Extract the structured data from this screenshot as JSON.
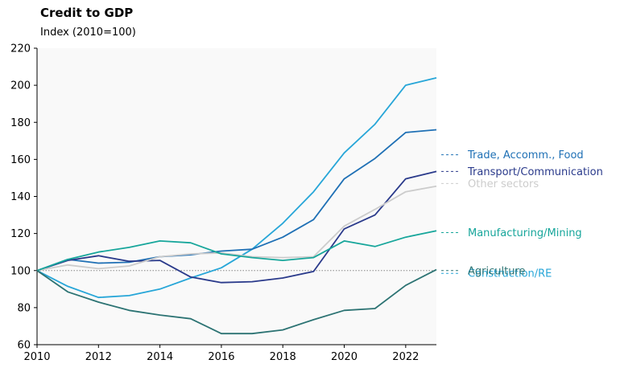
{
  "chart_data": {
    "type": "line",
    "title": "Credit to GDP",
    "subtitle": "Index (2010=100)",
    "xlabel": "",
    "ylabel": "",
    "xlim": [
      2010,
      2023
    ],
    "ylim": [
      60,
      220
    ],
    "x_ticks": [
      2010,
      2012,
      2014,
      2016,
      2018,
      2020,
      2022
    ],
    "y_ticks": [
      60,
      80,
      100,
      120,
      140,
      160,
      180,
      200,
      220
    ],
    "reference_line": 100,
    "grid": false,
    "legend": "direct labels at right end of lines",
    "x": [
      2010,
      2011,
      2012,
      2013,
      2014,
      2015,
      2016,
      2017,
      2018,
      2019,
      2020,
      2021,
      2022,
      2023
    ],
    "series": [
      {
        "name": "Construction/RE",
        "color": "#27a6d8",
        "values": [
          100,
          91.5,
          85.5,
          86.5,
          90,
          96,
          101.5,
          111.5,
          125.5,
          142.5,
          163.5,
          179,
          200,
          204
        ]
      },
      {
        "name": "Trade, Accomm., Food",
        "color": "#1f70b5",
        "values": [
          100,
          106,
          104,
          104.5,
          107.5,
          108.5,
          110.5,
          111.5,
          118,
          127.5,
          149.5,
          160.5,
          174.5,
          176
        ]
      },
      {
        "name": "Transport/Communication",
        "color": "#2a3a8b",
        "values": [
          100,
          105.5,
          108,
          105,
          105.5,
          96.5,
          93.5,
          94,
          96,
          99.5,
          122.5,
          130,
          149.5,
          153.5
        ]
      },
      {
        "name": "Other sectors",
        "color": "#cccccc",
        "values": [
          100,
          103,
          101,
          102.5,
          107.5,
          109,
          109.5,
          107.5,
          107,
          107.5,
          124,
          133,
          142.5,
          145.5
        ]
      },
      {
        "name": "Manufacturing/Mining",
        "color": "#17a69b",
        "values": [
          100,
          106,
          110,
          112.5,
          116,
          115,
          109,
          107,
          105.5,
          107,
          116,
          113,
          118,
          121.5
        ]
      },
      {
        "name": "Agriculture",
        "color": "#2c7373",
        "values": [
          100,
          88.5,
          83,
          78.5,
          76,
          74,
          66,
          66,
          68,
          73.5,
          78.5,
          79.5,
          92,
          100.5
        ]
      }
    ],
    "label_y": [
      98.5,
      162.5,
      153.5,
      147,
      120.5,
      100
    ]
  }
}
